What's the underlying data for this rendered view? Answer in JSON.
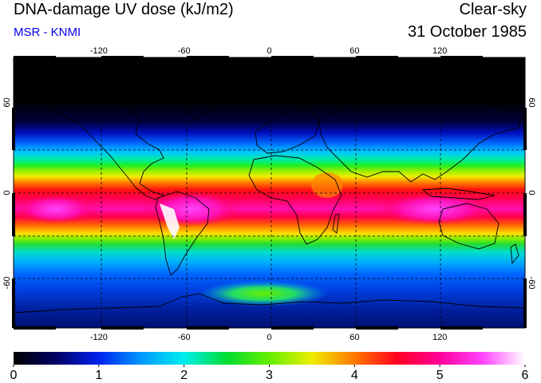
{
  "header": {
    "title": "DNA-damage UV dose (kJ/m2)",
    "credit": "MSR - KNMI",
    "condition": "Clear-sky",
    "date": "31 October 1985"
  },
  "colors": {
    "credit_text": "#0000ee",
    "grid": "#000000",
    "coastline": "#000000"
  },
  "map": {
    "projection": "equirectangular",
    "lon_range": [
      -180,
      180
    ],
    "lat_range": [
      -90,
      90
    ],
    "lon_ticks": [
      {
        "value": -120,
        "label": "-120"
      },
      {
        "value": -60,
        "label": "-60"
      },
      {
        "value": 0,
        "label": "0"
      },
      {
        "value": 60,
        "label": "60"
      },
      {
        "value": 120,
        "label": "120"
      }
    ],
    "lat_ticks": [
      {
        "value": 60,
        "label": "60"
      },
      {
        "value": 0,
        "label": "0"
      },
      {
        "value": -60,
        "label": "-60"
      }
    ]
  },
  "colorbar": {
    "min": 0,
    "max": 6,
    "labels": [
      "0",
      "1",
      "2",
      "3",
      "4",
      "5",
      "6"
    ],
    "stops": [
      {
        "value": 0.0,
        "color": "#000000"
      },
      {
        "value": 0.5,
        "color": "#000066"
      },
      {
        "value": 1.0,
        "color": "#0022ee"
      },
      {
        "value": 1.5,
        "color": "#0099ff"
      },
      {
        "value": 2.0,
        "color": "#00eeee"
      },
      {
        "value": 2.5,
        "color": "#00dd33"
      },
      {
        "value": 3.0,
        "color": "#66ee00"
      },
      {
        "value": 3.5,
        "color": "#eeee00"
      },
      {
        "value": 4.0,
        "color": "#ff7700"
      },
      {
        "value": 4.5,
        "color": "#ff0022"
      },
      {
        "value": 5.0,
        "color": "#ff0099"
      },
      {
        "value": 5.5,
        "color": "#ff44ff"
      },
      {
        "value": 6.0,
        "color": "#ffffff"
      }
    ]
  }
}
